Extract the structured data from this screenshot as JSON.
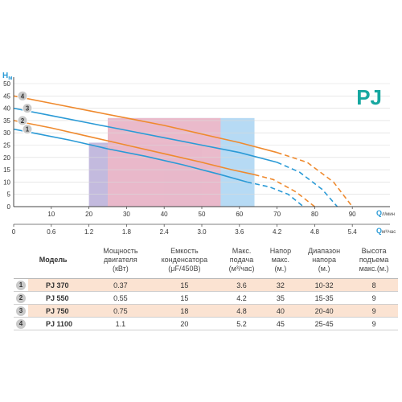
{
  "chart_data": {
    "type": "line",
    "title": "PJ",
    "ylabel_main": "H",
    "ylabel_sub": "м",
    "xlabel_main": "Q",
    "xlabel_sub": "л/мин",
    "x2label_main": "Q",
    "x2label_sub": "м³/час",
    "ylim": [
      0,
      50
    ],
    "xlim": [
      0,
      100
    ],
    "yticks": [
      0,
      5,
      10,
      15,
      20,
      25,
      30,
      35,
      40,
      45,
      50
    ],
    "xticks": [
      10,
      20,
      30,
      40,
      50,
      60,
      70,
      80,
      90
    ],
    "x2ticks": [
      {
        "x": 0,
        "label": "0"
      },
      {
        "x": 10,
        "label": "0.6"
      },
      {
        "x": 20,
        "label": "1.2"
      },
      {
        "x": 30,
        "label": "1.8"
      },
      {
        "x": 40,
        "label": "2.4"
      },
      {
        "x": 50,
        "label": "3.0"
      },
      {
        "x": 60,
        "label": "3.6"
      },
      {
        "x": 70,
        "label": "4.2"
      },
      {
        "x": 80,
        "label": "4.8"
      },
      {
        "x": 90,
        "label": "5.4"
      }
    ],
    "regions": [
      {
        "name": "1",
        "x": [
          20,
          50
        ],
        "y": [
          0,
          26
        ],
        "color": "#b9aed8"
      },
      {
        "name": "2",
        "x": [
          40,
          55
        ],
        "y": [
          0,
          20
        ],
        "color": "#a99fd6"
      },
      {
        "name": "3",
        "x": [
          25,
          64
        ],
        "y": [
          0,
          36
        ],
        "color": "#a9d4f2"
      },
      {
        "name": "4",
        "x": [
          25,
          55
        ],
        "y": [
          0,
          36
        ],
        "color": "#f3b4c3"
      }
    ],
    "series": [
      {
        "name": "1",
        "color": "#2a9ad6",
        "solid": [
          [
            0,
            31.5
          ],
          [
            5,
            30
          ],
          [
            15,
            27
          ],
          [
            25,
            23.5
          ],
          [
            35,
            20.5
          ],
          [
            45,
            17
          ],
          [
            55,
            13
          ],
          [
            62,
            10
          ]
        ],
        "dashed": [
          [
            62,
            10
          ],
          [
            68,
            8
          ],
          [
            73,
            5
          ],
          [
            77,
            0
          ]
        ]
      },
      {
        "name": "2",
        "color": "#ef8a2e",
        "solid": [
          [
            0,
            35
          ],
          [
            10,
            32
          ],
          [
            20,
            28.5
          ],
          [
            30,
            25
          ],
          [
            40,
            21.5
          ],
          [
            50,
            18
          ],
          [
            58,
            15
          ],
          [
            64,
            13
          ]
        ],
        "dashed": [
          [
            64,
            13
          ],
          [
            69,
            11
          ],
          [
            75,
            6
          ],
          [
            80,
            0
          ]
        ]
      },
      {
        "name": "3",
        "color": "#2a9ad6",
        "solid": [
          [
            0,
            40
          ],
          [
            10,
            37
          ],
          [
            20,
            34
          ],
          [
            30,
            31
          ],
          [
            40,
            28
          ],
          [
            50,
            25
          ],
          [
            60,
            22
          ],
          [
            70,
            18
          ]
        ],
        "dashed": [
          [
            70,
            18
          ],
          [
            76,
            14
          ],
          [
            82,
            7
          ],
          [
            86,
            0
          ]
        ]
      },
      {
        "name": "4",
        "color": "#ef8a2e",
        "solid": [
          [
            0,
            45
          ],
          [
            10,
            42
          ],
          [
            20,
            39
          ],
          [
            30,
            36
          ],
          [
            40,
            33
          ],
          [
            50,
            29.5
          ],
          [
            60,
            26
          ],
          [
            70,
            22
          ]
        ],
        "dashed": [
          [
            70,
            22
          ],
          [
            78,
            18
          ],
          [
            85,
            10
          ],
          [
            90,
            0
          ]
        ]
      }
    ]
  },
  "table": {
    "headers": {
      "model": "Модель",
      "power": [
        "Мощность",
        "двигателя",
        "(кВт)"
      ],
      "capacitor": [
        "Емкость",
        "конденсатора",
        "(μF/450B)"
      ],
      "flow": [
        "Макс.",
        "подача",
        "(м³/час)"
      ],
      "head": [
        "Напор",
        "макс.",
        "(м.)"
      ],
      "range": [
        "Диапазон",
        "напора",
        "(м.)"
      ],
      "lift": [
        "Высота",
        "подъема",
        "макс.(м.)"
      ]
    },
    "rows": [
      {
        "num": "1",
        "model": "PJ 370",
        "power": "0.37",
        "capacitor": "15",
        "flow": "3.6",
        "head": "32",
        "range": "10-32",
        "lift": "8"
      },
      {
        "num": "2",
        "model": "PJ 550",
        "power": "0.55",
        "capacitor": "15",
        "flow": "4.2",
        "head": "35",
        "range": "15-35",
        "lift": "9"
      },
      {
        "num": "3",
        "model": "PJ 750",
        "power": "0.75",
        "capacitor": "18",
        "flow": "4.8",
        "head": "40",
        "range": "20-40",
        "lift": "9"
      },
      {
        "num": "4",
        "model": "PJ 1100",
        "power": "1.1",
        "capacitor": "20",
        "flow": "5.2",
        "head": "45",
        "range": "25-45",
        "lift": "9"
      }
    ]
  }
}
